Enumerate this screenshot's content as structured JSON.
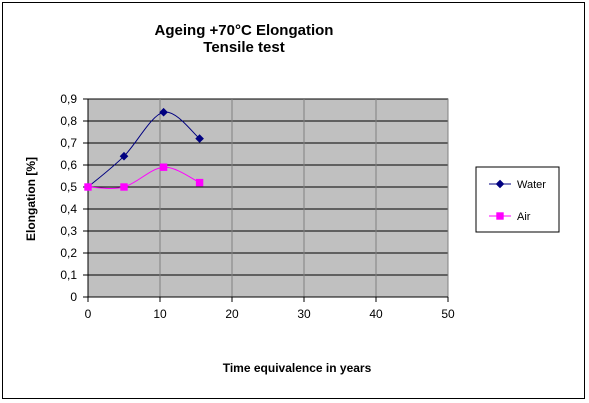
{
  "chart_data": {
    "type": "line",
    "title": "Ageing +70°C Elongation",
    "subtitle": "Tensile test",
    "xlabel": "Time equivalence in years",
    "ylabel": "Elongation [%]",
    "xlim": [
      0,
      50
    ],
    "ylim": [
      0,
      0.9
    ],
    "x_ticks": [
      0,
      10,
      20,
      30,
      40,
      50
    ],
    "y_ticks": [
      0,
      0.1,
      0.2,
      0.3,
      0.4,
      0.5,
      0.6,
      0.7,
      0.8,
      0.9
    ],
    "x_tick_labels": [
      "0",
      "10",
      "20",
      "30",
      "40",
      "50"
    ],
    "y_tick_labels": [
      "0",
      "0,1",
      "0,2",
      "0,3",
      "0,4",
      "0,5",
      "0,6",
      "0,7",
      "0,8",
      "0,9"
    ],
    "grid": "horizontal major gridlines and vertical lines at x ticks",
    "plot_background": "#c0c0c0",
    "legend_position": "right",
    "series": [
      {
        "name": "Water",
        "color": "#000080",
        "marker": "diamond",
        "x": [
          0,
          5,
          10.5,
          15.5
        ],
        "y": [
          0.5,
          0.64,
          0.84,
          0.72
        ]
      },
      {
        "name": "Air",
        "color": "#ff00ff",
        "marker": "square",
        "x": [
          0,
          5,
          10.5,
          15.5
        ],
        "y": [
          0.5,
          0.5,
          0.59,
          0.52
        ]
      }
    ]
  }
}
